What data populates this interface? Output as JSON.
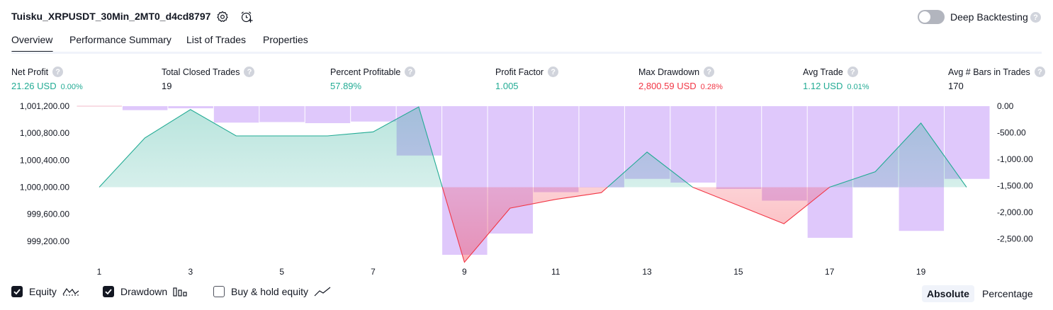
{
  "header": {
    "strategy_name": "Tuisku_XRPUSDT_30Min_2MT0_d4cd8797",
    "settings_icon": "gear-icon",
    "add_alert_icon": "alarm-plus-icon",
    "deep_backtesting_label": "Deep Backtesting",
    "deep_backtesting_enabled": false,
    "help_glyph": "?"
  },
  "tabs": [
    {
      "label": "Overview",
      "active": true
    },
    {
      "label": "Performance Summary",
      "active": false
    },
    {
      "label": "List of Trades",
      "active": false
    },
    {
      "label": "Properties",
      "active": false
    }
  ],
  "metrics": [
    {
      "label": "Net Profit",
      "value": "21.26 USD",
      "pct": "0.00%",
      "color": "#22ab94"
    },
    {
      "label": "Total Closed Trades",
      "value": "19",
      "pct": "",
      "color": "#131722"
    },
    {
      "label": "Percent Profitable",
      "value": "57.89%",
      "pct": "",
      "color": "#22ab94"
    },
    {
      "label": "Profit Factor",
      "value": "1.005",
      "pct": "",
      "color": "#22ab94"
    },
    {
      "label": "Max Drawdown",
      "value": "2,800.59 USD",
      "pct": "0.28%",
      "color": "#f23645"
    },
    {
      "label": "Avg Trade",
      "value": "1.12 USD",
      "pct": "0.01%",
      "color": "#22ab94"
    },
    {
      "label": "Avg # Bars in Trades",
      "value": "170",
      "pct": "",
      "color": "#131722"
    }
  ],
  "legend": {
    "equity_label": "Equity",
    "equity_checked": true,
    "drawdown_label": "Drawdown",
    "drawdown_checked": true,
    "buyhold_label": "Buy & hold equity",
    "buyhold_checked": false
  },
  "view_mode": {
    "absolute_label": "Absolute",
    "percentage_label": "Percentage",
    "selected": "Absolute"
  },
  "chart_data": {
    "type": "line",
    "x": [
      1,
      2,
      3,
      4,
      5,
      6,
      7,
      8,
      9,
      10,
      11,
      12,
      13,
      14,
      15,
      16,
      17,
      18,
      19,
      20
    ],
    "x_ticks": [
      "1",
      "3",
      "5",
      "7",
      "9",
      "11",
      "13",
      "15",
      "17",
      "19"
    ],
    "series": [
      {
        "name": "Equity",
        "axis": "left",
        "values": [
          1000000,
          1000730,
          1001150,
          1000760,
          1000760,
          1000760,
          1000820,
          1001190,
          998890,
          999690,
          999820,
          999920,
          1000520,
          1000000,
          999730,
          999460,
          1000000,
          1000230,
          1000950,
          1000000
        ]
      },
      {
        "name": "Drawdown",
        "axis": "right",
        "kind": "bar",
        "values": [
          0,
          -75,
          -40,
          -310,
          -300,
          -320,
          -290,
          -930,
          -2800,
          -2400,
          -1620,
          -1530,
          -1370,
          -1440,
          -1560,
          -1780,
          -2480,
          -1530,
          -2350,
          -1370
        ]
      }
    ],
    "left_axis": {
      "ylim": [
        999000,
        1001200
      ],
      "ticks": [
        "1,001,200.00",
        "1,000,800.00",
        "1,000,400.00",
        "1,000,000.00",
        "999,600.00",
        "999,200.00"
      ]
    },
    "right_axis": {
      "ylim": [
        -2800,
        0
      ],
      "ticks": [
        "0.00",
        "-500.00",
        "-1,000.00",
        "-1,500.00",
        "-2,000.00",
        "-2,500.00"
      ]
    },
    "baseline": 1000000,
    "colors": {
      "equity_up": "#22ab94",
      "equity_down": "#f23645",
      "drawdown_bar": "#dcc2fb"
    },
    "grid": false,
    "legend_position": "bottom-left"
  }
}
